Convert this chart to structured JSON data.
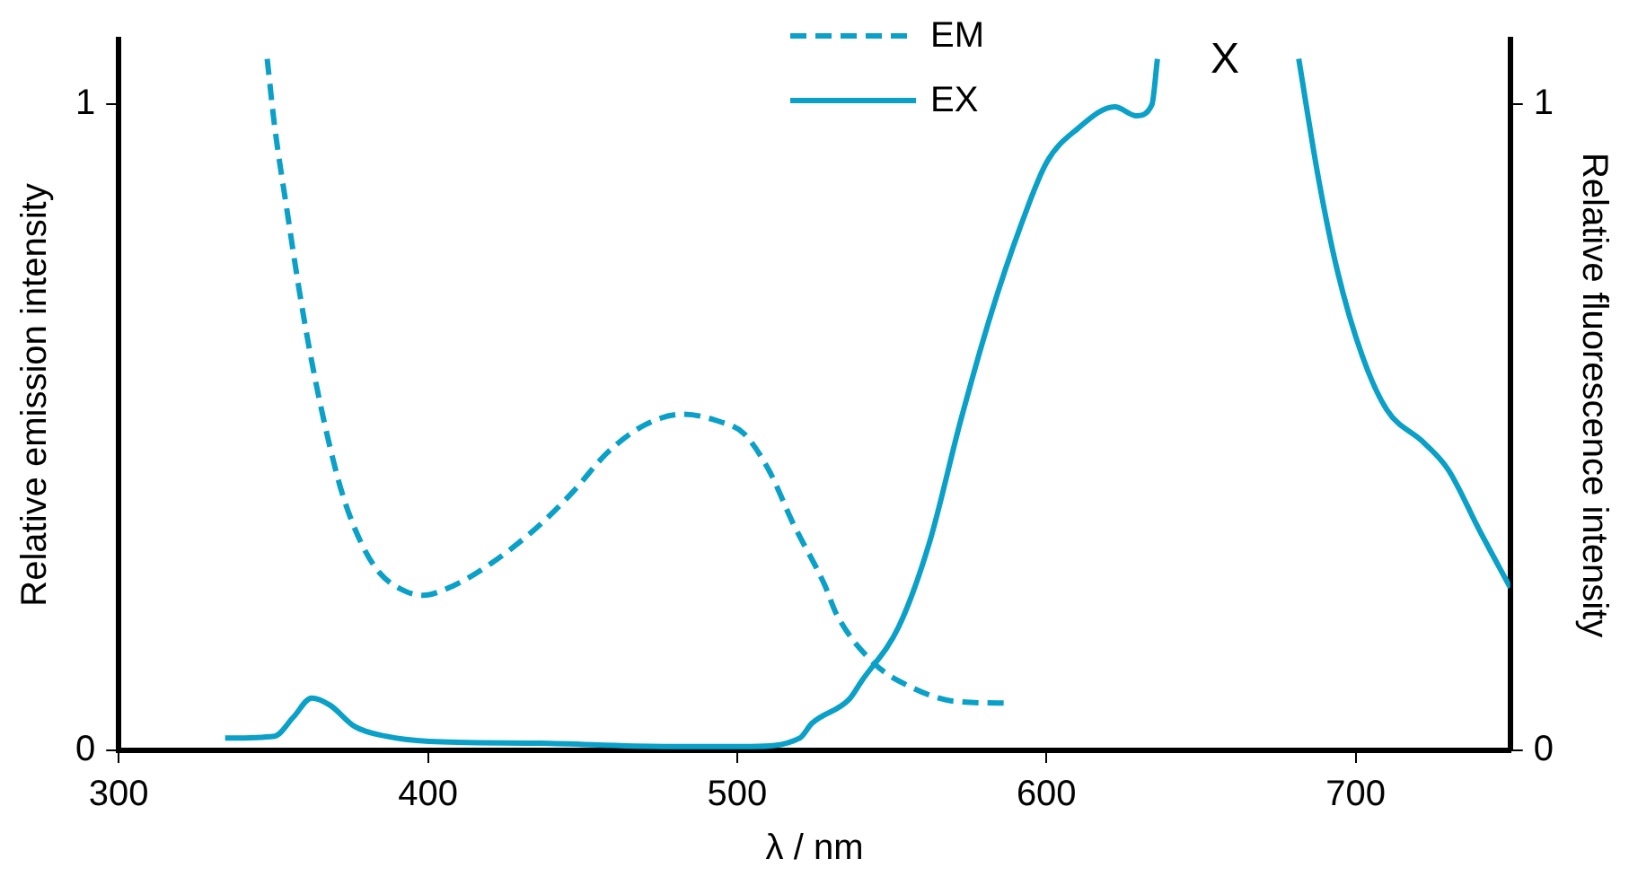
{
  "chart_data": {
    "type": "line",
    "xlabel": "λ / nm",
    "ylabel": "Relative emission intensity",
    "y2label": "Relative fluorescence intensity",
    "xlim": [
      300,
      750
    ],
    "xticks": [
      300,
      400,
      500,
      600,
      700
    ],
    "ylim": [
      0,
      1.1
    ],
    "yticks": [
      0,
      1
    ],
    "y2lim": [
      0,
      1.1
    ],
    "y2ticks": [
      0,
      1
    ],
    "grid": false,
    "legend": "top",
    "marker": "none",
    "annotations": [
      "X"
    ],
    "series": [
      {
        "name": "EM",
        "color": "#0aa0c8",
        "line_style": "dashed",
        "x": [
          348.0,
          350.4,
          354.4,
          358.3,
          362.4,
          367.3,
          372.3,
          378.3,
          384.3,
          392.3,
          398.3,
          408.3,
          420.3,
          434.3,
          446.3,
          458.3,
          470.3,
          482.3,
          494.2,
          502.2,
          510.2,
          518.2,
          528.2,
          532.2,
          544.2,
          556.2,
          570.2,
          588.2
        ],
        "values": [
          1.07,
          0.966,
          0.836,
          0.714,
          0.602,
          0.49,
          0.397,
          0.322,
          0.275,
          0.247,
          0.24,
          0.255,
          0.289,
          0.341,
          0.397,
          0.462,
          0.504,
          0.52,
          0.509,
          0.49,
          0.434,
          0.35,
          0.257,
          0.21,
          0.135,
          0.098,
          0.076,
          0.073
        ]
      },
      {
        "name": "EX",
        "color": "#0aa0c8",
        "line_style": "solid",
        "x": [
          334.4,
          350.4,
          356.4,
          362.4,
          368.3,
          376.3,
          386.3,
          400.3,
          436.3,
          476.3,
          504.3,
          520.2,
          524.2,
          536.2,
          540.2,
          552.2,
          562.2,
          572.2,
          582.2,
          592.1,
          600.1,
          610.1,
          622.1,
          629.1,
          634.1,
          635.9,
          660,
          681.6,
          688.1,
          694.1,
          702.1,
          710.1,
          722.1,
          730.0,
          740.0,
          750.0
        ],
        "values": [
          0.019,
          0.022,
          0.051,
          0.081,
          0.07,
          0.037,
          0.022,
          0.014,
          0.011,
          0.006,
          0.006,
          0.019,
          0.042,
          0.079,
          0.107,
          0.191,
          0.322,
          0.509,
          0.677,
          0.817,
          0.91,
          0.962,
          0.996,
          0.982,
          0.999,
          1.07,
          null,
          1.07,
          0.882,
          0.742,
          0.611,
          0.527,
          0.476,
          0.434,
          0.341,
          0.252
        ]
      }
    ]
  }
}
